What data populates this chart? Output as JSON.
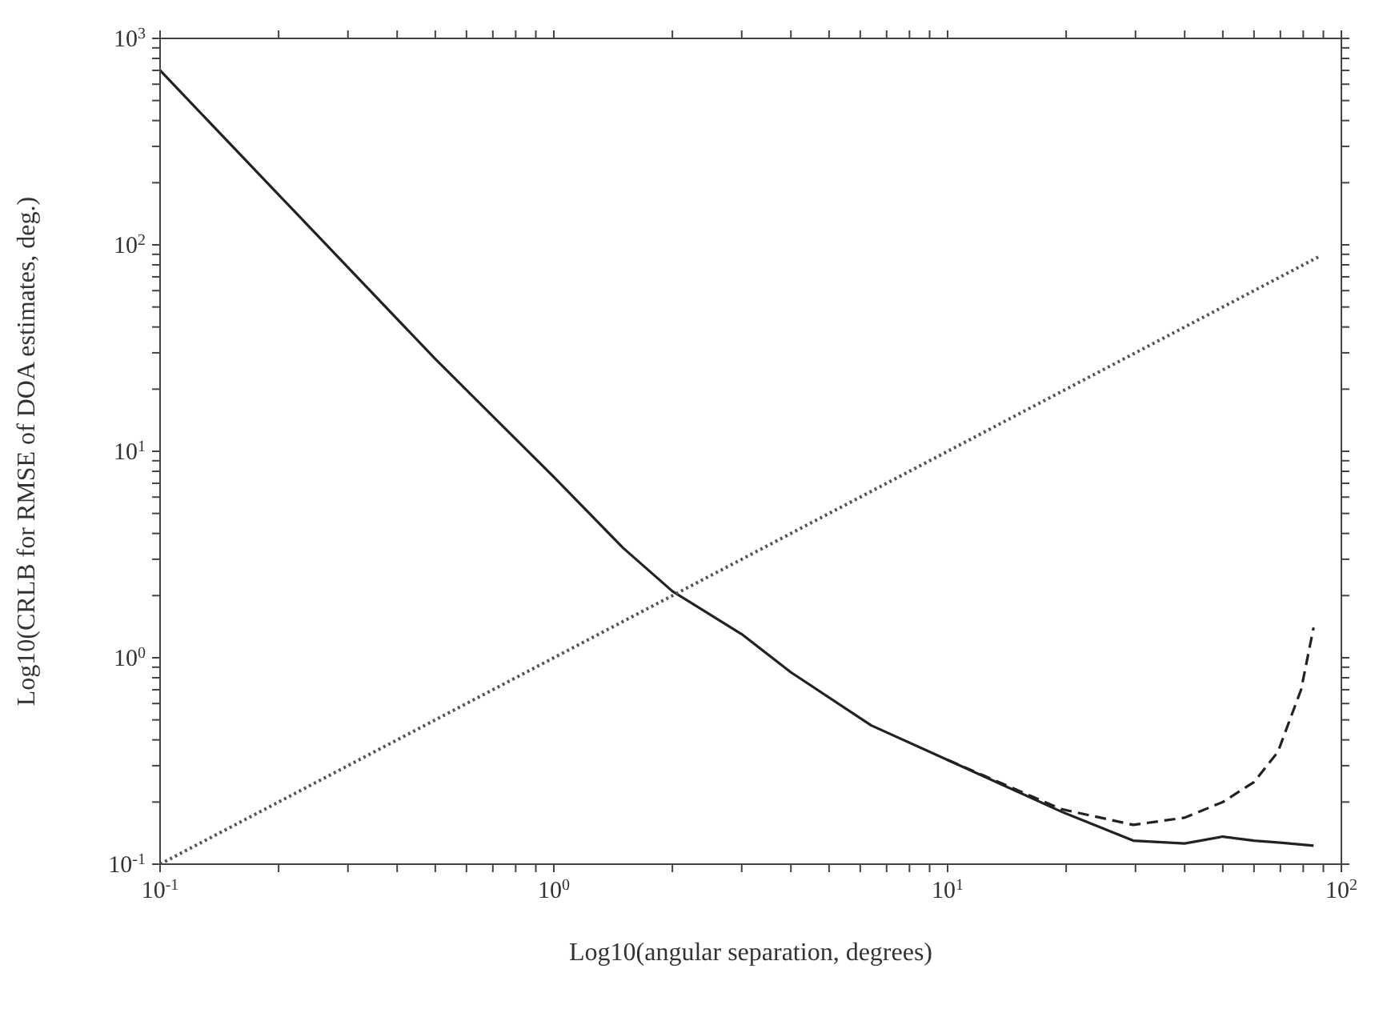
{
  "chart_data": {
    "type": "line",
    "xlabel": "Log10(angular separation, degrees)",
    "ylabel": "Log10(CRLB for RMSE of DOA estimates, deg.)",
    "log": "xy",
    "marker": "none",
    "xlim": [
      0.1,
      100
    ],
    "ylim": [
      0.1,
      1000
    ],
    "xticks": [
      {
        "value": 0.1,
        "label": "10$^{-1}$"
      },
      {
        "value": 0.2,
        "label": null
      },
      {
        "value": 0.3,
        "label": null
      },
      {
        "value": 0.4,
        "label": null
      },
      {
        "value": 0.5,
        "label": null
      },
      {
        "value": 0.6,
        "label": null
      },
      {
        "value": 0.7,
        "label": null
      },
      {
        "value": 0.8,
        "label": null
      },
      {
        "value": 0.9,
        "label": null
      },
      {
        "value": 1,
        "label": "10$^{0}$"
      },
      {
        "value": 2,
        "label": null
      },
      {
        "value": 3,
        "label": null
      },
      {
        "value": 4,
        "label": null
      },
      {
        "value": 5,
        "label": null
      },
      {
        "value": 6,
        "label": null
      },
      {
        "value": 7,
        "label": null
      },
      {
        "value": 8,
        "label": null
      },
      {
        "value": 9,
        "label": null
      },
      {
        "value": 10,
        "label": "10$^{1}$"
      },
      {
        "value": 20,
        "label": null
      },
      {
        "value": 30,
        "label": null
      },
      {
        "value": 40,
        "label": null
      },
      {
        "value": 50,
        "label": null
      },
      {
        "value": 60,
        "label": null
      },
      {
        "value": 70,
        "label": null
      },
      {
        "value": 80,
        "label": null
      },
      {
        "value": 90,
        "label": null
      },
      {
        "value": 100,
        "label": "10$^{2}$"
      }
    ],
    "yticks": [
      {
        "value": 0.1,
        "label": "10$^{-1}$"
      },
      {
        "value": 0.2,
        "label": null
      },
      {
        "value": 0.3,
        "label": null
      },
      {
        "value": 0.4,
        "label": null
      },
      {
        "value": 0.5,
        "label": null
      },
      {
        "value": 0.6,
        "label": null
      },
      {
        "value": 0.7,
        "label": null
      },
      {
        "value": 0.8,
        "label": null
      },
      {
        "value": 0.9,
        "label": null
      },
      {
        "value": 1,
        "label": "10$^{0}$"
      },
      {
        "value": 2,
        "label": null
      },
      {
        "value": 3,
        "label": null
      },
      {
        "value": 4,
        "label": null
      },
      {
        "value": 5,
        "label": null
      },
      {
        "value": 6,
        "label": null
      },
      {
        "value": 7,
        "label": null
      },
      {
        "value": 8,
        "label": null
      },
      {
        "value": 9,
        "label": null
      },
      {
        "value": 10,
        "label": "10$^{1}$"
      },
      {
        "value": 20,
        "label": null
      },
      {
        "value": 30,
        "label": null
      },
      {
        "value": 40,
        "label": null
      },
      {
        "value": 50,
        "label": null
      },
      {
        "value": 60,
        "label": null
      },
      {
        "value": 70,
        "label": null
      },
      {
        "value": 80,
        "label": null
      },
      {
        "value": 90,
        "label": null
      },
      {
        "value": 100,
        "label": "10$^{2}$"
      },
      {
        "value": 200,
        "label": null
      },
      {
        "value": 300,
        "label": null
      },
      {
        "value": 400,
        "label": null
      },
      {
        "value": 500,
        "label": null
      },
      {
        "value": 600,
        "label": null
      },
      {
        "value": 700,
        "label": null
      },
      {
        "value": 800,
        "label": null
      },
      {
        "value": 900,
        "label": null
      },
      {
        "value": 1000,
        "label": "10$^{3}$"
      }
    ],
    "series": [
      {
        "color": "#222222",
        "line_style": "solid",
        "x": [
          0.1,
          0.2,
          0.5,
          1,
          1.5,
          2,
          3,
          4,
          6.4,
          10,
          19.4,
          29.6,
          40,
          50,
          60,
          70,
          85
        ],
        "values": [
          700,
          175,
          28,
          7.5,
          3.4,
          2.1,
          1.3,
          0.85,
          0.47,
          0.32,
          0.18,
          0.13,
          0.126,
          0.136,
          0.13,
          0.127,
          0.123
        ]
      },
      {
        "color": "#222222",
        "line_style": "dashed",
        "x": [
          10,
          19.4,
          29.6,
          40,
          50,
          60,
          69,
          79,
          85
        ],
        "values": [
          0.32,
          0.185,
          0.155,
          0.168,
          0.2,
          0.25,
          0.35,
          0.7,
          1.4
        ]
      },
      {
        "color": "#555555",
        "line_style": "dotted",
        "x": [
          0.1,
          88
        ],
        "values": [
          0.1,
          88
        ]
      }
    ]
  }
}
